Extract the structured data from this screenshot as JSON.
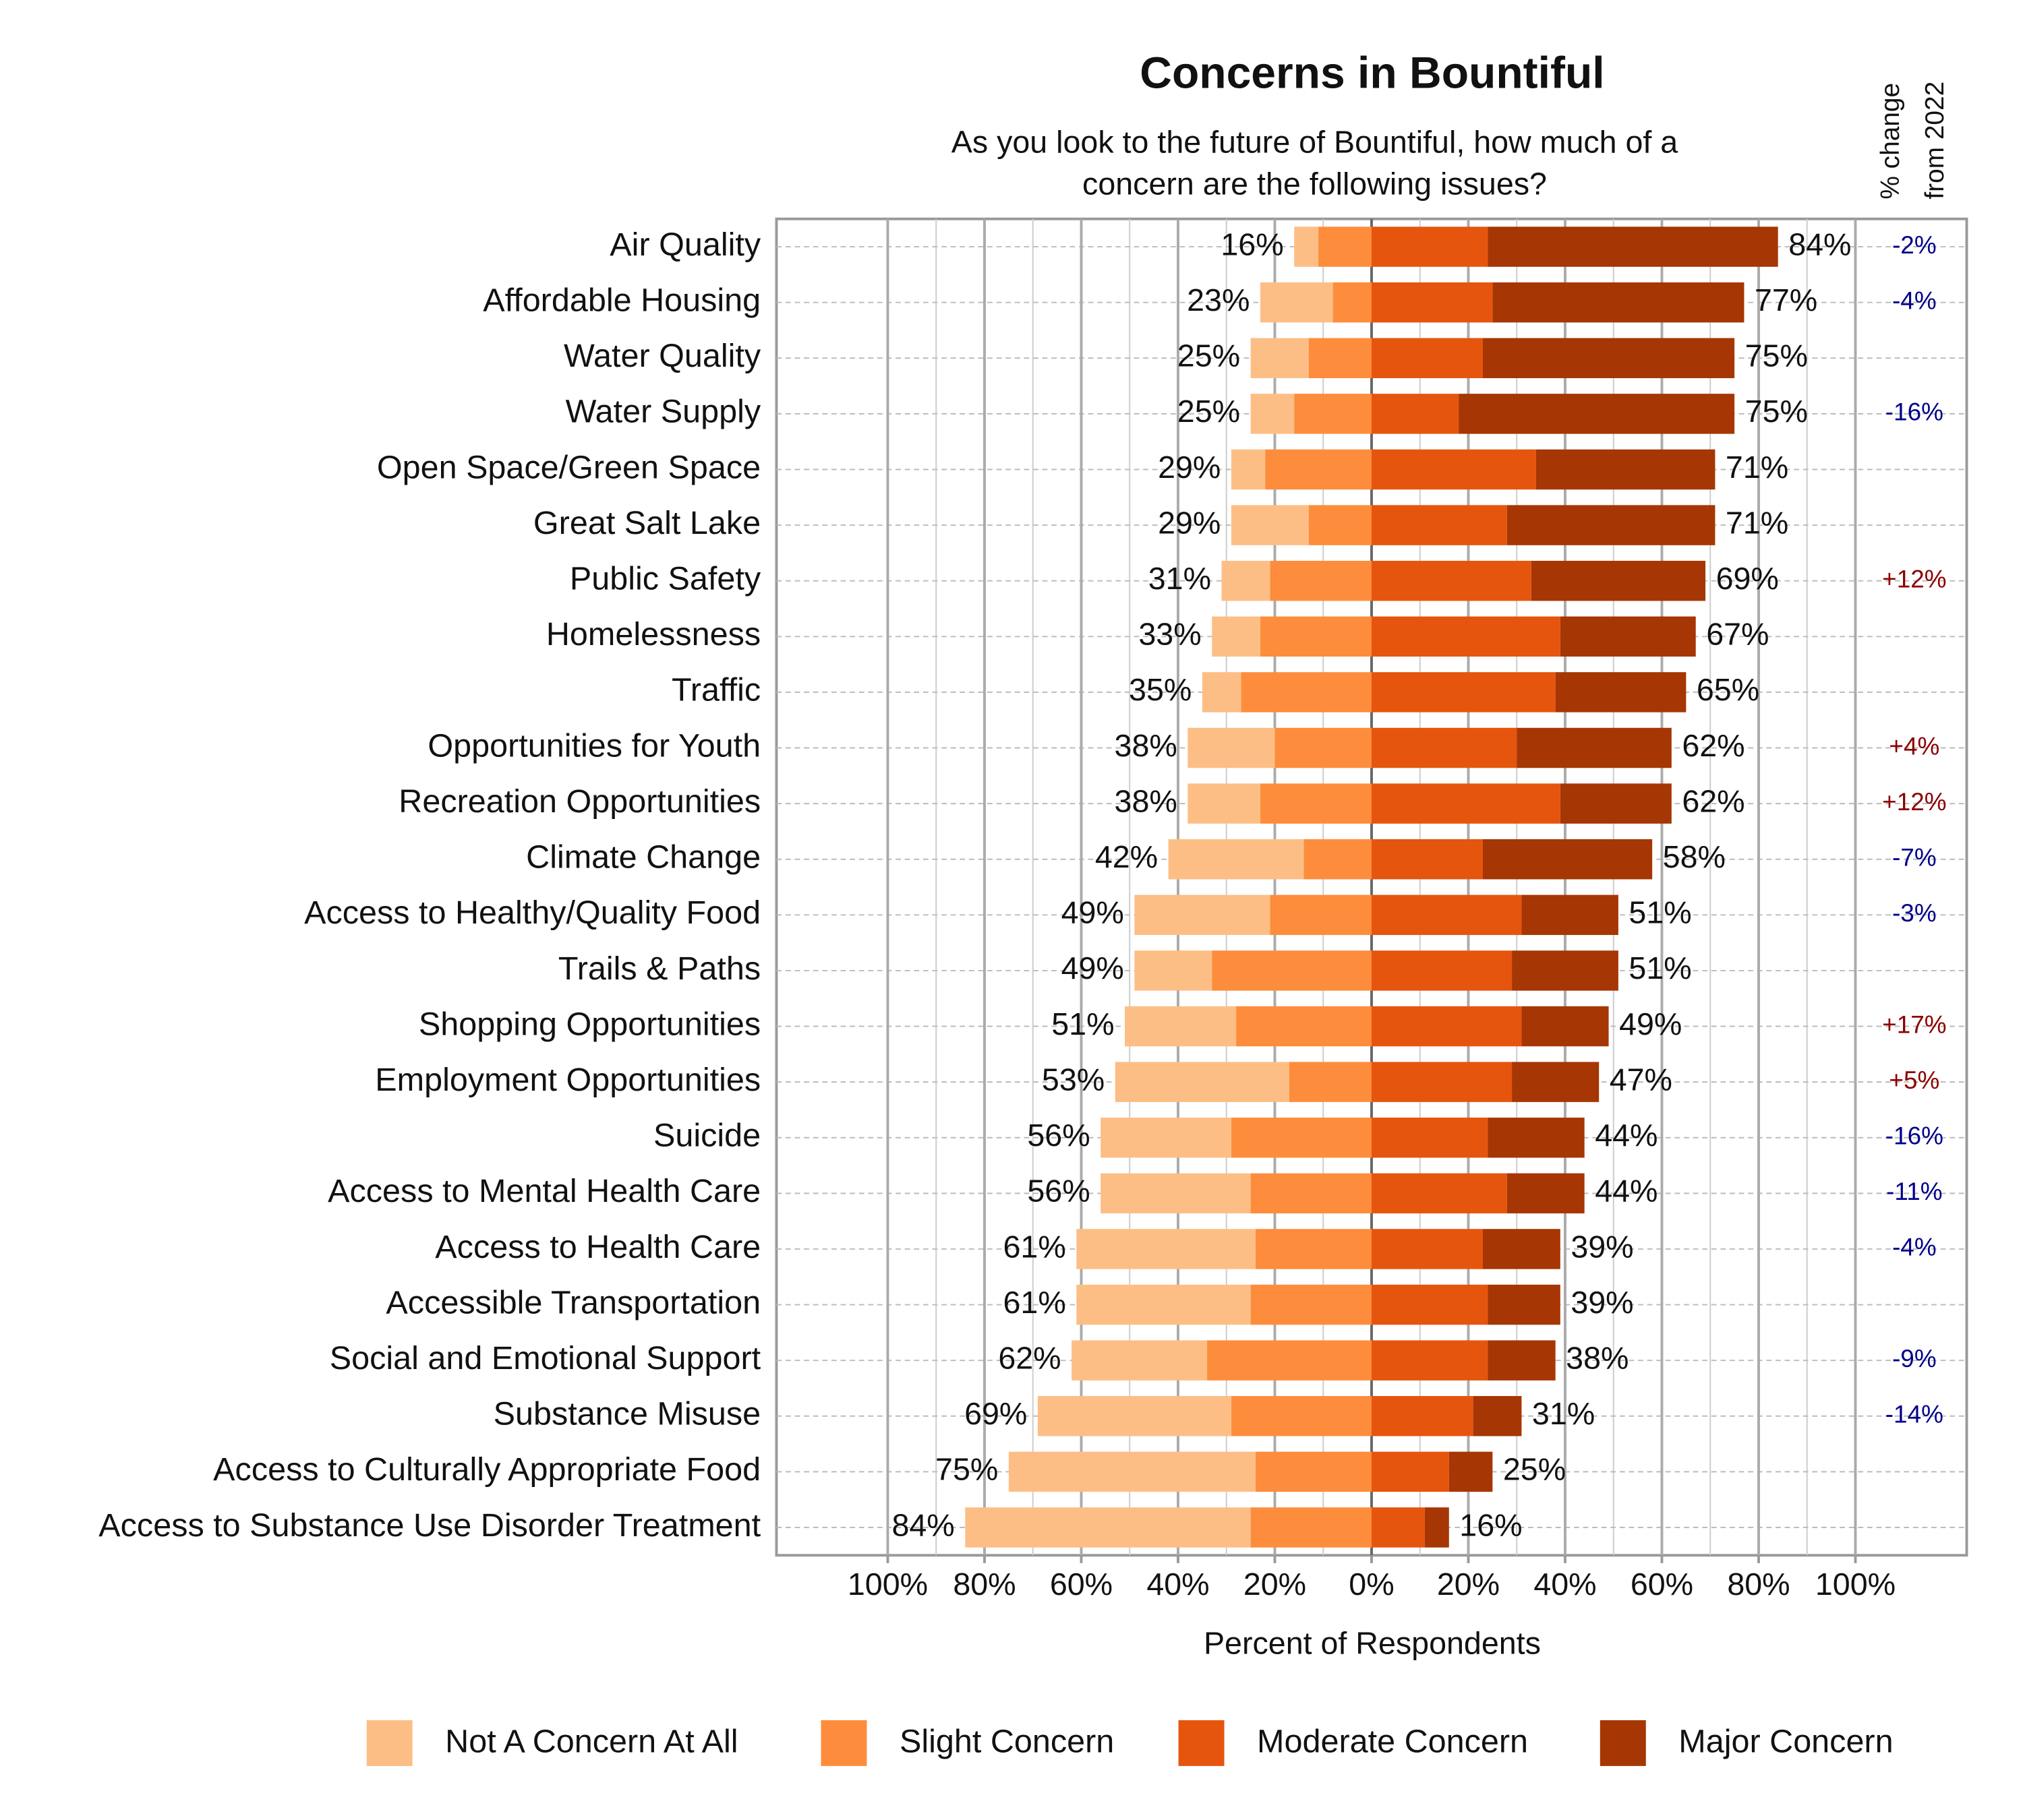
{
  "chart_data": {
    "type": "diverging_bar",
    "title": "Concerns in Bountiful",
    "subtitle": [
      "As you look to the future of Bountiful, how much of a",
      "concern are the following issues?"
    ],
    "x_label": "Percent of Respondents",
    "categories": [
      "Air Quality",
      "Affordable Housing",
      "Water Quality",
      "Water Supply",
      "Open Space/Green Space",
      "Great Salt Lake",
      "Public Safety",
      "Homelessness",
      "Traffic",
      "Opportunities for Youth",
      "Recreation Opportunities",
      "Climate Change",
      "Access to Healthy/Quality Food",
      "Trails & Paths",
      "Shopping Opportunities",
      "Employment Opportunities",
      "Suicide",
      "Access to Mental Health Care",
      "Access to Health Care",
      "Accessible Transportation",
      "Social and Emotional Support",
      "Substance Misuse",
      "Access to Culturally Appropriate Food",
      "Access to Substance Use Disorder Treatment"
    ],
    "series": [
      {
        "name": "Not A Concern At All",
        "color": "#fdbe85",
        "side": "left",
        "values": [
          5,
          15,
          12,
          9,
          7,
          16,
          10,
          10,
          8,
          18,
          15,
          28,
          28,
          16,
          23,
          36,
          27,
          31,
          37,
          36,
          28,
          40,
          51,
          59
        ]
      },
      {
        "name": "Slight Concern",
        "color": "#fd8d3c",
        "side": "left",
        "values": [
          11,
          8,
          13,
          16,
          22,
          13,
          21,
          23,
          27,
          20,
          23,
          14,
          21,
          33,
          28,
          17,
          29,
          25,
          24,
          25,
          34,
          29,
          24,
          25
        ]
      },
      {
        "name": "Moderate Concern",
        "color": "#e6550d",
        "side": "right",
        "values": [
          24,
          25,
          23,
          18,
          34,
          28,
          33,
          39,
          38,
          30,
          39,
          23,
          31,
          29,
          31,
          29,
          24,
          28,
          23,
          24,
          24,
          21,
          16,
          11
        ]
      },
      {
        "name": "Major Concern",
        "color": "#a63603",
        "side": "right",
        "values": [
          60,
          52,
          52,
          57,
          37,
          43,
          36,
          28,
          27,
          32,
          23,
          35,
          20,
          22,
          18,
          18,
          20,
          16,
          16,
          15,
          14,
          10,
          9,
          5
        ]
      }
    ],
    "left_totals": {
      "values": [
        16,
        23,
        25,
        25,
        29,
        29,
        31,
        33,
        35,
        38,
        38,
        42,
        49,
        49,
        51,
        53,
        56,
        56,
        61,
        61,
        62,
        69,
        75,
        84
      ],
      "value_labels": [
        "16%",
        "23%",
        "25%",
        "25%",
        "29%",
        "29%",
        "31%",
        "33%",
        "35%",
        "38%",
        "38%",
        "42%",
        "49%",
        "49%",
        "51%",
        "53%",
        "56%",
        "56%",
        "61%",
        "61%",
        "62%",
        "69%",
        "75%",
        "84%"
      ]
    },
    "right_totals": {
      "values": [
        84,
        77,
        75,
        75,
        71,
        71,
        69,
        67,
        65,
        62,
        62,
        58,
        51,
        51,
        49,
        47,
        44,
        44,
        39,
        39,
        38,
        31,
        25,
        16
      ],
      "value_labels": [
        "84%",
        "77%",
        "75%",
        "75%",
        "71%",
        "71%",
        "69%",
        "67%",
        "65%",
        "62%",
        "62%",
        "58%",
        "51%",
        "51%",
        "49%",
        "47%",
        "44%",
        "44%",
        "39%",
        "39%",
        "38%",
        "31%",
        "25%",
        "16%"
      ]
    },
    "change": {
      "title": [
        "% change",
        "from 2022"
      ],
      "values": [
        -2,
        -4,
        null,
        -16,
        null,
        null,
        12,
        null,
        null,
        4,
        12,
        -7,
        -3,
        null,
        17,
        5,
        -16,
        -11,
        -4,
        null,
        -9,
        -14,
        null,
        null
      ],
      "value_labels": [
        "-2%",
        "-4%",
        null,
        "-16%",
        null,
        null,
        "+12%",
        null,
        null,
        "+4%",
        "+12%",
        "-7%",
        "-3%",
        null,
        "+17%",
        "+5%",
        "-16%",
        "-11%",
        "-4%",
        null,
        "-9%",
        "-14%",
        null,
        null
      ],
      "positive_color": "#8b0000",
      "negative_color": "#00008b"
    },
    "xlim": [
      -123,
      123
    ],
    "xticks": [
      {
        "value": -100,
        "label": "100%"
      },
      {
        "value": -80,
        "label": "80%"
      },
      {
        "value": -60,
        "label": "60%"
      },
      {
        "value": -40,
        "label": "40%"
      },
      {
        "value": -20,
        "label": "20%"
      },
      {
        "value": 0,
        "label": "0%"
      },
      {
        "value": 20,
        "label": "20%"
      },
      {
        "value": 40,
        "label": "40%"
      },
      {
        "value": 60,
        "label": "60%"
      },
      {
        "value": 80,
        "label": "80%"
      },
      {
        "value": 100,
        "label": "100%"
      }
    ],
    "minor_xticks": [
      -90,
      -70,
      -50,
      -30,
      -10,
      10,
      30,
      50,
      70,
      90
    ],
    "grid": true
  }
}
